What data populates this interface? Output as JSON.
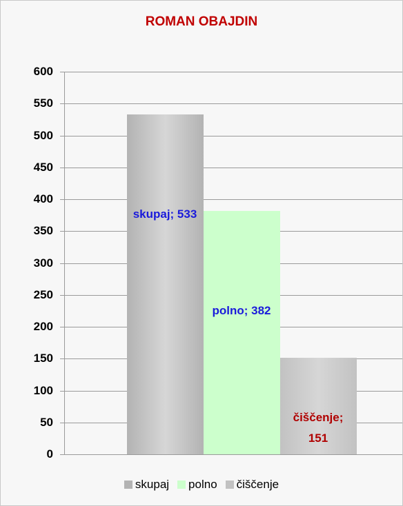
{
  "chart_data": {
    "type": "bar",
    "title": "ROMAN OBAJDIN",
    "categories": [
      null
    ],
    "series": [
      {
        "name": "skupaj",
        "color": "#b3b3b3",
        "values": [
          533
        ],
        "value_labels": [
          "skupaj; 533"
        ],
        "label_color": "#1a1adb"
      },
      {
        "name": "polno",
        "color": "#ccffcc",
        "values": [
          382
        ],
        "value_labels": [
          "polno; 382"
        ],
        "label_color": "#1a1adb"
      },
      {
        "name": "čiščenje",
        "color": "#c2c2c2",
        "values": [
          151
        ],
        "value_labels": [
          "čiščenje; 151"
        ],
        "label_color": "#b00000"
      }
    ],
    "ylim": [
      0,
      600
    ],
    "yticks": [
      0,
      50,
      100,
      150,
      200,
      250,
      300,
      350,
      400,
      450,
      500,
      550,
      600
    ],
    "grid": true,
    "legend": "bottom"
  }
}
